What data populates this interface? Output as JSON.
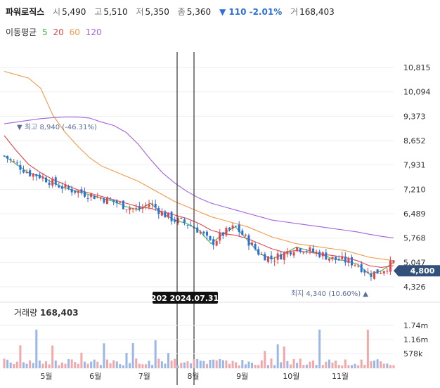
{
  "header": {
    "name": "파워로직스",
    "open_label": "시",
    "open": "5,490",
    "high_label": "고",
    "high": "5,510",
    "low_label": "저",
    "low": "5,350",
    "close_label": "종",
    "close": "5,360",
    "change": "▼ 110 -2.01%",
    "volume_label": "거",
    "volume": "168,403"
  },
  "moving_average": {
    "label": "이동평균",
    "periods": [
      {
        "period": "5",
        "color": "#3bb34a"
      },
      {
        "period": "20",
        "color": "#e0464e"
      },
      {
        "period": "60",
        "color": "#f09a4a"
      },
      {
        "period": "120",
        "color": "#a262e0"
      }
    ]
  },
  "colors": {
    "up": "#e0464e",
    "down": "#2f6fd8",
    "grid": "#eeeeee",
    "current_price_bg": "#33507a",
    "marker_text": "#5b6f9a"
  },
  "markers": {
    "high_text": "▼ 최고 8,940 (-46.31%)",
    "low_text": "최지 4,340 (10.60%) ▲",
    "current_price": "4,800",
    "crosshair_label": "202 2024.07.31"
  },
  "volume_panel": {
    "label": "거래량",
    "value": "168,403",
    "ticks": [
      "1.74m",
      "1.16m",
      "578k"
    ]
  },
  "chart_data": {
    "type": "candlestick",
    "x_ticks": [
      "5월",
      "6월",
      "7월",
      "8월",
      "9월",
      "10월",
      "11월"
    ],
    "y_ticks": [
      "10,815",
      "10,094",
      "9,373",
      "8,652",
      "7,931",
      "7,210",
      "6,489",
      "5,768",
      "5,047",
      "4,326"
    ],
    "ylim": [
      4326,
      10815
    ],
    "last_price": 4800,
    "period_high": 8940,
    "period_low": 4340,
    "series": [
      {
        "name": "5",
        "values": [
          8200,
          7950,
          7700,
          7600,
          7400,
          7250,
          7150,
          7050,
          6950,
          6850,
          6700,
          6600,
          6800,
          6500,
          6300,
          6200,
          6000,
          5600,
          5900,
          6100,
          5700,
          5300,
          5150,
          5300,
          5500,
          5400,
          5300,
          5150,
          5100,
          5000,
          4700,
          4800,
          5050
        ]
      },
      {
        "name": "20",
        "values": [
          8800,
          8350,
          7950,
          7700,
          7500,
          7350,
          7200,
          7100,
          7000,
          6900,
          6800,
          6700,
          6650,
          6550,
          6450,
          6350,
          6200,
          6000,
          5900,
          5850,
          5750,
          5600,
          5450,
          5350,
          5400,
          5350,
          5300,
          5250,
          5200,
          5100,
          4950,
          4900,
          4950
        ]
      },
      {
        "name": "60",
        "values": [
          10700,
          10600,
          10500,
          10200,
          9400,
          8900,
          8500,
          8150,
          7900,
          7750,
          7600,
          7450,
          7250,
          7050,
          6850,
          6700,
          6550,
          6400,
          6300,
          6200,
          6100,
          5950,
          5800,
          5700,
          5600,
          5550,
          5500,
          5450,
          5400,
          5300,
          5200,
          5150,
          5100
        ]
      },
      {
        "name": "120",
        "values": [
          9150,
          9200,
          9250,
          9300,
          9330,
          9350,
          9350,
          9320,
          9200,
          9100,
          8900,
          8550,
          8100,
          7700,
          7400,
          7150,
          6950,
          6800,
          6700,
          6600,
          6500,
          6400,
          6300,
          6250,
          6200,
          6150,
          6100,
          6050,
          6000,
          5950,
          5880,
          5820,
          5770
        ]
      }
    ]
  }
}
